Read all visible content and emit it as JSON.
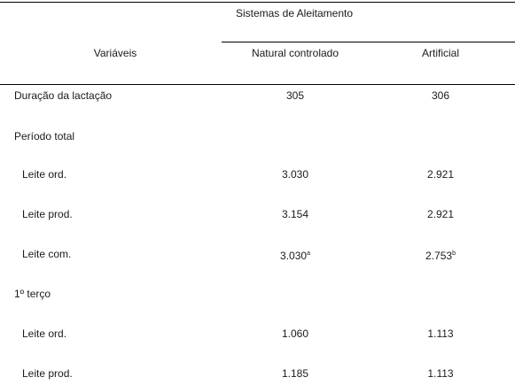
{
  "header": {
    "group": "Sistemas de Aleitamento",
    "variable": "Variáveis",
    "columns": [
      "Natural controlado",
      "Artificial"
    ]
  },
  "table": {
    "rows": [
      {
        "label": "Duração da lactação",
        "values": [
          "305",
          "306"
        ]
      },
      {
        "label": "Período total"
      },
      {
        "label": "Leite ord.",
        "values": [
          "3.030",
          "2.921"
        ]
      },
      {
        "label": "Leite prod.",
        "values": [
          "3.154",
          "2.921"
        ]
      },
      {
        "label": "Leite com.",
        "values": [
          "3.030",
          "2.753"
        ],
        "superscripts": [
          "a",
          "b"
        ]
      },
      {
        "label": "1º terço"
      },
      {
        "label": "Leite ord.",
        "values": [
          "1.060",
          "1.113"
        ]
      },
      {
        "label": "Leite prod.",
        "values": [
          "1.185",
          "1.113"
        ]
      }
    ]
  }
}
